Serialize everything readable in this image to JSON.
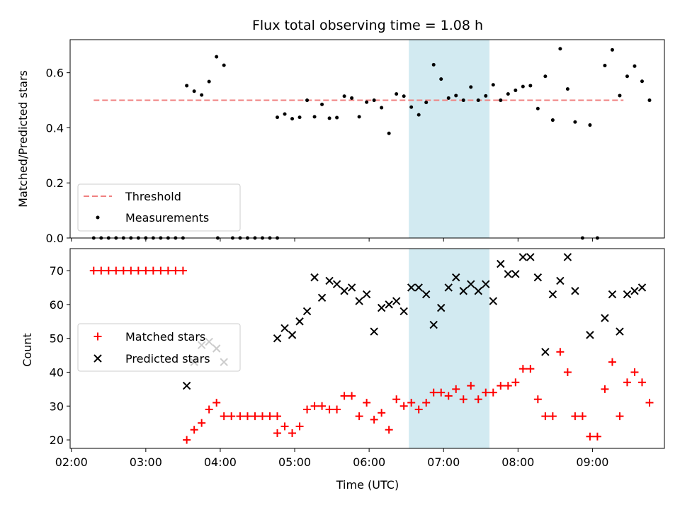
{
  "chart_data": [
    {
      "type": "scatter",
      "title": "Flux total observing time = 1.08 h",
      "xlabel": "",
      "ylabel": "Matched/Predicted stars",
      "xlim": [
        "02:00",
        "09:50"
      ],
      "ylim": [
        0,
        0.72
      ],
      "yticks": [
        "0.0",
        "0.2",
        "0.4",
        "0.6"
      ],
      "grid": false,
      "legend_position": "lower-left",
      "highlight_span": [
        "06:32",
        "07:37"
      ],
      "highlight_color": "#add8e6",
      "threshold": {
        "name": "Threshold",
        "value": 0.5,
        "x": [
          "02:18",
          "09:25"
        ],
        "color": "#f08080"
      },
      "series": [
        {
          "name": "Measurements",
          "color": "#000000",
          "points": [
            [
              "02:18",
              0
            ],
            [
              "02:24",
              0
            ],
            [
              "02:30",
              0
            ],
            [
              "02:36",
              0
            ],
            [
              "02:42",
              0
            ],
            [
              "02:48",
              0
            ],
            [
              "02:54",
              0
            ],
            [
              "03:00",
              0
            ],
            [
              "03:06",
              0
            ],
            [
              "03:12",
              0
            ],
            [
              "03:18",
              0
            ],
            [
              "03:24",
              0
            ],
            [
              "03:30",
              0
            ],
            [
              "03:33",
              0.553
            ],
            [
              "03:39",
              0.533
            ],
            [
              "03:45",
              0.519
            ],
            [
              "03:51",
              0.568
            ],
            [
              "03:57",
              0.658
            ],
            [
              "04:03",
              0.627
            ],
            [
              "03:58",
              0
            ],
            [
              "04:10",
              0
            ],
            [
              "04:16",
              0
            ],
            [
              "04:22",
              0
            ],
            [
              "04:28",
              0
            ],
            [
              "04:34",
              0
            ],
            [
              "04:40",
              0
            ],
            [
              "04:46",
              0
            ],
            [
              "04:46",
              0.438
            ],
            [
              "04:52",
              0.45
            ],
            [
              "04:58",
              0.433
            ],
            [
              "05:04",
              0.438
            ],
            [
              "05:10",
              0.5
            ],
            [
              "05:16",
              0.44
            ],
            [
              "05:22",
              0.485
            ],
            [
              "05:28",
              0.435
            ],
            [
              "05:34",
              0.437
            ],
            [
              "05:40",
              0.515
            ],
            [
              "05:46",
              0.508
            ],
            [
              "05:52",
              0.44
            ],
            [
              "05:58",
              0.493
            ],
            [
              "06:04",
              0.5
            ],
            [
              "06:10",
              0.473
            ],
            [
              "06:16",
              0.38
            ],
            [
              "06:22",
              0.523
            ],
            [
              "06:28",
              0.515
            ],
            [
              "06:34",
              0.475
            ],
            [
              "06:40",
              0.447
            ],
            [
              "06:46",
              0.492
            ],
            [
              "06:52",
              0.629
            ],
            [
              "06:58",
              0.577
            ],
            [
              "07:04",
              0.508
            ],
            [
              "07:10",
              0.517
            ],
            [
              "07:16",
              0.5
            ],
            [
              "07:22",
              0.548
            ],
            [
              "07:28",
              0.5
            ],
            [
              "07:34",
              0.516
            ],
            [
              "07:40",
              0.556
            ],
            [
              "07:46",
              0.5
            ],
            [
              "07:52",
              0.523
            ],
            [
              "07:58",
              0.536
            ],
            [
              "08:04",
              0.55
            ],
            [
              "08:10",
              0.553
            ],
            [
              "08:16",
              0.47
            ],
            [
              "08:22",
              0.587
            ],
            [
              "08:28",
              0.428
            ],
            [
              "08:34",
              0.687
            ],
            [
              "08:40",
              0.541
            ],
            [
              "08:46",
              0.421
            ],
            [
              "08:52",
              0
            ],
            [
              "08:58",
              0.41
            ],
            [
              "09:04",
              0
            ],
            [
              "09:10",
              0.626
            ],
            [
              "09:16",
              0.683
            ],
            [
              "09:22",
              0.517
            ],
            [
              "09:28",
              0.587
            ],
            [
              "09:34",
              0.624
            ],
            [
              "09:40",
              0.569
            ],
            [
              "09:46",
              0.5
            ]
          ]
        }
      ]
    },
    {
      "type": "scatter",
      "title": "",
      "xlabel": "Time (UTC)",
      "ylabel": "Count",
      "xlim": [
        "02:00",
        "09:50"
      ],
      "ylim": [
        17.5,
        76.5
      ],
      "xticks": [
        "02:00",
        "03:00",
        "04:00",
        "05:00",
        "06:00",
        "07:00",
        "08:00",
        "09:00"
      ],
      "yticks": [
        "20",
        "30",
        "40",
        "50",
        "60",
        "70"
      ],
      "grid": false,
      "legend_position": "center-left",
      "highlight_span": [
        "06:32",
        "07:37"
      ],
      "highlight_color": "#add8e6",
      "series": [
        {
          "name": "Matched stars",
          "marker": "+",
          "color": "#ff0000",
          "points": []
        },
        {
          "name": "Predicted stars",
          "marker": "x",
          "color": "#000000",
          "points": []
        }
      ]
    }
  ]
}
